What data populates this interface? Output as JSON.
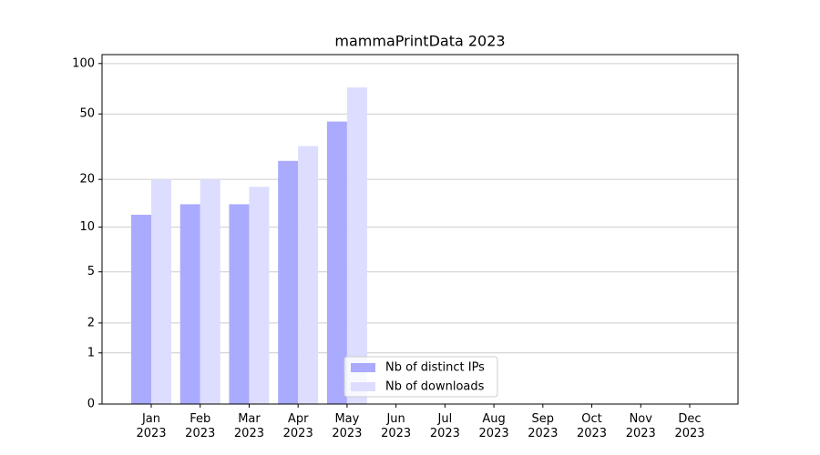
{
  "chart_data": {
    "type": "bar",
    "title": "mammaPrintData 2023",
    "categories": [
      "Jan 2023",
      "Feb 2023",
      "Mar 2023",
      "Apr 2023",
      "May 2023",
      "Jun 2023",
      "Jul 2023",
      "Aug 2023",
      "Sep 2023",
      "Oct 2023",
      "Nov 2023",
      "Dec 2023"
    ],
    "series": [
      {
        "name": "Nb of distinct IPs",
        "color": "#aaaaff",
        "values": [
          12,
          14,
          14,
          26,
          45,
          null,
          null,
          null,
          null,
          null,
          null,
          null
        ]
      },
      {
        "name": "Nb of downloads",
        "color": "#ddddff",
        "values": [
          20,
          20,
          18,
          32,
          72,
          null,
          null,
          null,
          null,
          null,
          null,
          null
        ]
      }
    ],
    "yscale": "log1p",
    "ylim": [
      0,
      113
    ],
    "yticks": [
      0,
      1,
      2,
      5,
      10,
      20,
      50,
      100
    ],
    "grid": true,
    "legend": "lower center"
  }
}
